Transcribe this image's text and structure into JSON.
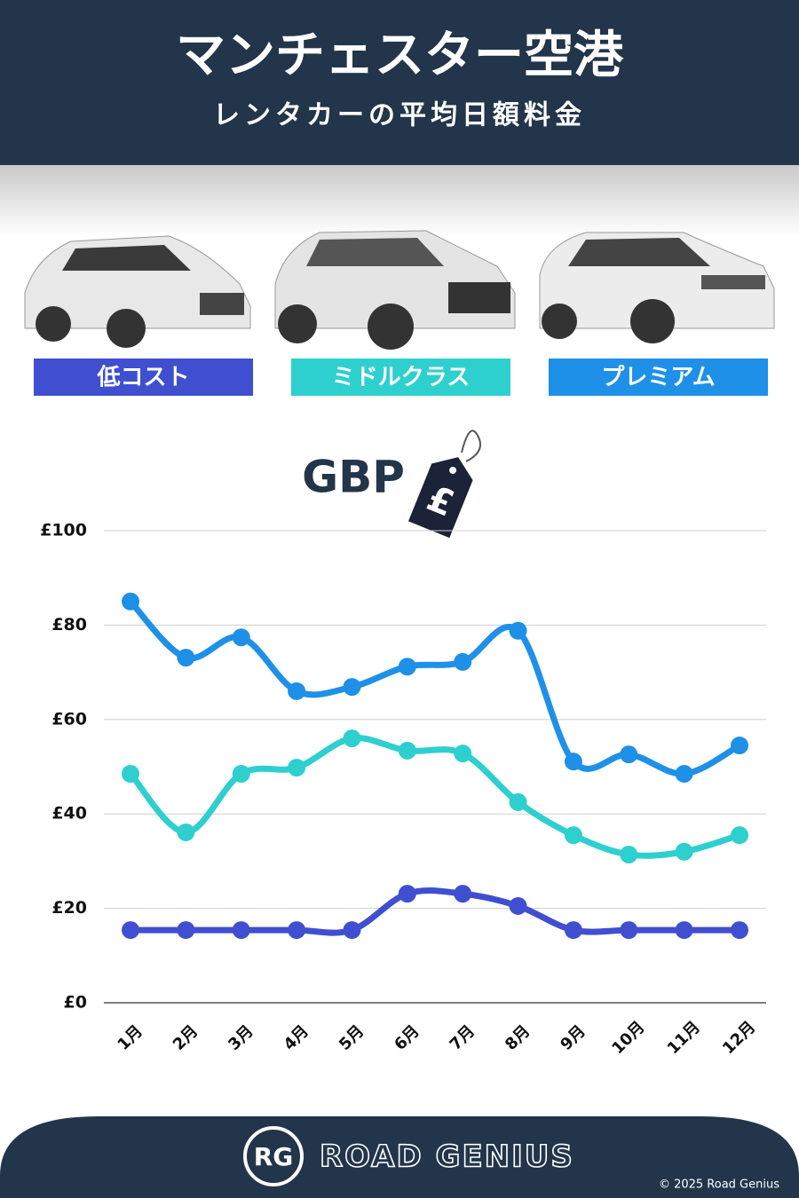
{
  "chart_data": {
    "type": "line",
    "title": "マンチェスター空港",
    "subtitle": "レンタカーの平均日額料金",
    "currency_label": "GBP",
    "currency_symbol": "£",
    "categories": [
      "1月",
      "2月",
      "3月",
      "4月",
      "5月",
      "6月",
      "7月",
      "8月",
      "9月",
      "10月",
      "11月",
      "12月"
    ],
    "series": [
      {
        "name": "低コスト",
        "color": "#3f4fd0",
        "values": [
          15.4,
          15.4,
          15.4,
          15.4,
          15.4,
          23.1,
          23.1,
          20.5,
          15.4,
          15.4,
          15.4,
          15.4
        ]
      },
      {
        "name": "ミドルクラス",
        "color": "#2ecfcf",
        "values": [
          48.5,
          36.1,
          48.5,
          49.8,
          56,
          53.4,
          52.8,
          42.5,
          35.5,
          31.4,
          32,
          35.5
        ]
      },
      {
        "name": "プレミアム",
        "color": "#1e90e8",
        "values": [
          85,
          73.1,
          77.4,
          66,
          66.9,
          71.2,
          72.2,
          78.8,
          51.1,
          52.6,
          48.5,
          54.5
        ]
      }
    ],
    "ylim": [
      0,
      100
    ],
    "yticks": [
      {
        "value": 0,
        "label": "£0"
      },
      {
        "value": 20,
        "label": "£20"
      },
      {
        "value": 40,
        "label": "£40"
      },
      {
        "value": 60,
        "label": "£60"
      },
      {
        "value": 80,
        "label": "£80"
      },
      {
        "value": 100,
        "label": "£100"
      }
    ],
    "grid": true,
    "footer": {
      "logo": "RG",
      "brand": "ROAD GENIUS",
      "copyright": "© 2025 Road Genius"
    }
  }
}
